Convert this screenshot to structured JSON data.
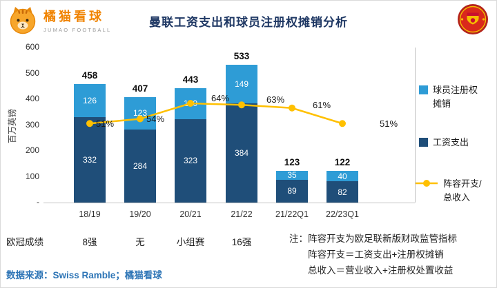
{
  "header": {
    "brand": {
      "name": "橘猫看球",
      "subtitle": "JUMAO FOOTBALL"
    },
    "title": "曼联工资支出和球员注册权摊销分析"
  },
  "chart_data": {
    "type": "bar",
    "subtype": "stacked-bar-with-line",
    "title": "曼联工资支出和球员注册权摊销分析",
    "ylabel": "百万英镑",
    "ylim": [
      0,
      600
    ],
    "ytick_labels": [
      "600",
      "500",
      "400",
      "300",
      "200",
      "100",
      "-"
    ],
    "secondary_axis": {
      "unit": "%",
      "range": [
        0,
        100
      ],
      "labels_hidden": true
    },
    "grid": false,
    "legend_position": "right",
    "categories": [
      "18/19",
      "19/20",
      "20/21",
      "21/22",
      "21/22Q1",
      "22/23Q1"
    ],
    "series": [
      {
        "name": "工资支出",
        "type": "bar",
        "stack_order": 0,
        "color": "#1F4E79",
        "values": [
          332,
          284,
          323,
          384,
          89,
          82
        ]
      },
      {
        "name": "球员注册权摊销",
        "type": "bar",
        "stack_order": 1,
        "color": "#2E9CD6",
        "values": [
          126,
          123,
          120,
          149,
          35,
          40
        ]
      },
      {
        "name": "阵容开支/总收入",
        "type": "line",
        "axis": "secondary",
        "unit": "%",
        "color": "#FFC000",
        "values": [
          51,
          54,
          64,
          63,
          61,
          51
        ]
      }
    ],
    "totals": [
      458,
      407,
      443,
      533,
      123,
      122
    ],
    "line_labels": [
      "51%",
      "54%",
      "64%",
      "63%",
      "61%",
      "51%"
    ],
    "legend": [
      {
        "label": "球员注册权摊销",
        "swatch": "square",
        "color": "#2E9CD6"
      },
      {
        "label": "工资支出",
        "swatch": "square",
        "color": "#1F4E79"
      },
      {
        "label": "阵容开支/总收入",
        "swatch": "line-marker",
        "color": "#FFC000"
      }
    ]
  },
  "footer": {
    "ucl": {
      "label": "欧冠成绩",
      "results": [
        "8强",
        "无",
        "小组赛",
        "16强",
        "",
        ""
      ]
    },
    "notes": [
      "注：阵容开支为欧足联新版财政监管指标",
      "阵容开支＝工资支出+注册权摊销",
      "总收入＝营业收入+注册权处置收益"
    ],
    "source": "数据来源：Swiss Ramble；橘猫看球"
  },
  "colors": {
    "title_navy": "#1F3864",
    "brand_orange": "#F08300",
    "bar_dark_blue": "#1F4E79",
    "bar_light_blue": "#2E9CD6",
    "line_yellow": "#FFC000",
    "source_blue": "#2E75B6",
    "manutd_red": "#DA291C"
  }
}
